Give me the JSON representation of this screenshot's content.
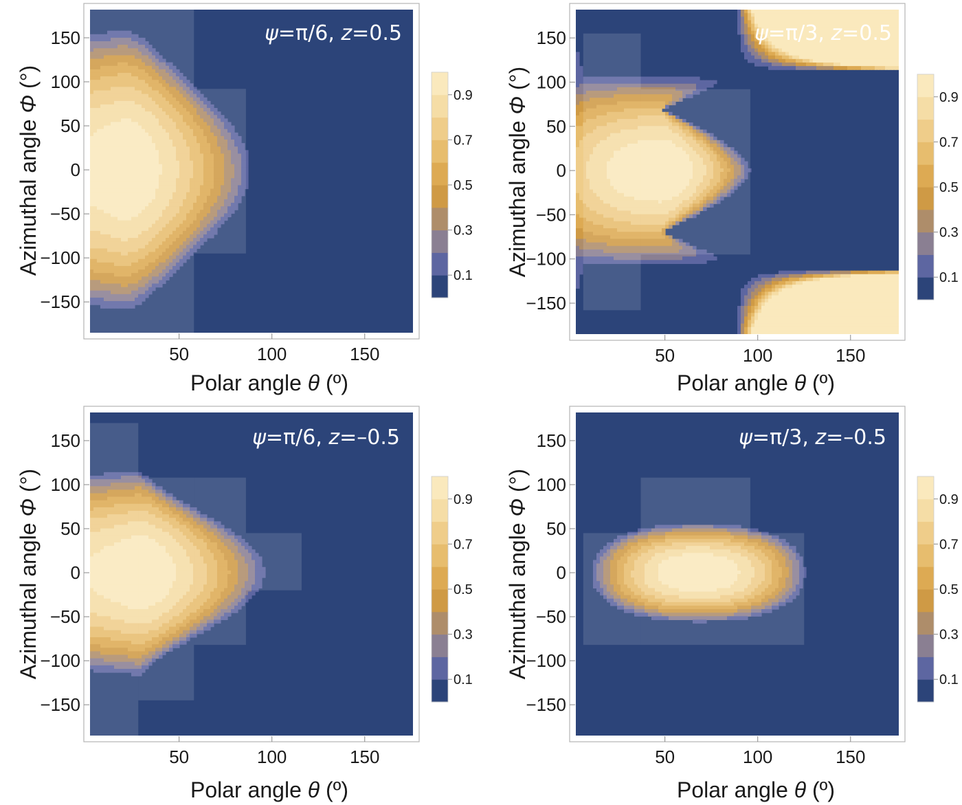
{
  "chart_data": [
    {
      "type": "heatmap",
      "annotation": {
        "psi": "ψ",
        "psi_value": "=π/6, ",
        "z": "z",
        "z_value": "=0.5"
      },
      "xlabel": {
        "text": "Polar angle ",
        "symbol": "θ",
        "unit": " (º)"
      },
      "ylabel": {
        "text": "Azimuthal angle ",
        "symbol": "Φ",
        "unit": " (°)"
      },
      "xlim": [
        2,
        176
      ],
      "ylim": [
        -185,
        182
      ],
      "xticks": [
        50,
        100,
        150
      ],
      "yticks": [
        150,
        100,
        50,
        0,
        -50,
        -100,
        -150
      ],
      "contour_levels": [
        0.1,
        0.2,
        0.3,
        0.4,
        0.5,
        0.6,
        0.7,
        0.8,
        0.9
      ],
      "colorbar_ticks": [
        "0.9",
        "0.7",
        "0.5",
        "0.3",
        "0.1"
      ],
      "peak": {
        "theta": 20,
        "phi": 0,
        "value": 1.0
      },
      "shape": {
        "theta_reach_at_phi0": 92,
        "theta_reach_at_phi180": 52,
        "phi_halfwidth": 105
      },
      "lighter_regions": [
        {
          "theta": [
            2,
            58
          ],
          "phi": [
            -185,
            182
          ]
        },
        {
          "theta": [
            58,
            86
          ],
          "phi": [
            -95,
            92
          ]
        }
      ]
    },
    {
      "type": "heatmap",
      "annotation": {
        "psi": "ψ",
        "psi_value": "=π/3, ",
        "z": "z",
        "z_value": "=0.5"
      },
      "xlabel": {
        "text": "Polar angle ",
        "symbol": "θ",
        "unit": " (º)"
      },
      "ylabel": {
        "text": "Azimuthal angle ",
        "symbol": "Φ",
        "unit": " (°)"
      },
      "xlim": [
        2,
        176
      ],
      "ylim": [
        -185,
        182
      ],
      "xticks": [
        50,
        100,
        150
      ],
      "yticks": [
        150,
        100,
        50,
        0,
        -50,
        -100,
        -150
      ],
      "contour_levels": [
        0.1,
        0.2,
        0.3,
        0.4,
        0.5,
        0.6,
        0.7,
        0.8,
        0.9
      ],
      "colorbar_ticks": [
        "0.9",
        "0.7",
        "0.5",
        "0.3",
        "0.1"
      ],
      "peak": {
        "theta": 48,
        "phi": 0,
        "value": 1.0
      },
      "shape": {
        "theta_reach_at_phi0": 98,
        "theta_reach_at_phi180": 8,
        "phi_halfwidth": 100
      },
      "lighter_regions": [
        {
          "theta": [
            6,
            37
          ],
          "phi": [
            -158,
            155
          ]
        },
        {
          "theta": [
            37,
            96
          ],
          "phi": [
            -95,
            92
          ]
        }
      ]
    },
    {
      "type": "heatmap",
      "annotation": {
        "psi": "ψ",
        "psi_value": "=π/6, ",
        "z": "z",
        "z_value": "=–0.5"
      },
      "xlabel": {
        "text": "Polar angle ",
        "symbol": "θ",
        "unit": " (º)"
      },
      "ylabel": {
        "text": "Azimuthal angle ",
        "symbol": "Φ",
        "unit": " (°)"
      },
      "xlim": [
        2,
        176
      ],
      "ylim": [
        -185,
        182
      ],
      "xticks": [
        50,
        100,
        150
      ],
      "yticks": [
        150,
        100,
        50,
        0,
        -50,
        -100,
        -150
      ],
      "contour_levels": [
        0.1,
        0.2,
        0.3,
        0.4,
        0.5,
        0.6,
        0.7,
        0.8,
        0.9
      ],
      "colorbar_ticks": [
        "0.9",
        "0.7",
        "0.5",
        "0.3",
        "0.1"
      ],
      "peak": {
        "theta": 28,
        "phi": 0,
        "value": 1.0
      },
      "shape": {
        "theta_reach_at_phi0": 100,
        "theta_reach_at_phi180": 12,
        "phi_halfwidth": 95
      },
      "lighter_regions": [
        {
          "theta": [
            2,
            28
          ],
          "phi": [
            -185,
            170
          ]
        },
        {
          "theta": [
            28,
            58
          ],
          "phi": [
            -145,
            108
          ]
        },
        {
          "theta": [
            58,
            86
          ],
          "phi": [
            -82,
            108
          ]
        },
        {
          "theta": [
            86,
            116
          ],
          "phi": [
            -20,
            45
          ]
        }
      ]
    },
    {
      "type": "heatmap",
      "annotation": {
        "psi": "ψ",
        "psi_value": "=π/3, ",
        "z": "z",
        "z_value": "=–0.5"
      },
      "xlabel": {
        "text": "Polar angle ",
        "symbol": "θ",
        "unit": " (º)"
      },
      "ylabel": {
        "text": "Azimuthal angle ",
        "symbol": "Φ",
        "unit": " (°)"
      },
      "xlim": [
        2,
        176
      ],
      "ylim": [
        -185,
        182
      ],
      "xticks": [
        50,
        100,
        150
      ],
      "yticks": [
        150,
        100,
        50,
        0,
        -50,
        -100,
        -150
      ],
      "contour_levels": [
        0.1,
        0.2,
        0.3,
        0.4,
        0.5,
        0.6,
        0.7,
        0.8,
        0.9
      ],
      "colorbar_ticks": [
        "0.9",
        "0.7",
        "0.5",
        "0.3",
        "0.1"
      ],
      "peak": {
        "theta": 68,
        "phi": 0,
        "value": 1.0
      },
      "shape": {
        "theta_halfwidth": 60,
        "phi_halfwidth": 58
      },
      "lighter_regions": [
        {
          "theta": [
            6,
            37
          ],
          "phi": [
            -82,
            45
          ]
        },
        {
          "theta": [
            37,
            96
          ],
          "phi": [
            -82,
            108
          ]
        },
        {
          "theta": [
            96,
            125
          ],
          "phi": [
            -82,
            45
          ]
        }
      ]
    }
  ],
  "colors": {
    "background_level": "#2c4479",
    "levels": [
      "#2c4479",
      "#5d66a1",
      "#8a7f92",
      "#ae8d6a",
      "#cf9a45",
      "#ddaa53",
      "#e7bd6e",
      "#efcd8a",
      "#f5dda6",
      "#fae9bd"
    ],
    "contour_line": "#7a7a82",
    "frame": "#b4b4b4"
  }
}
